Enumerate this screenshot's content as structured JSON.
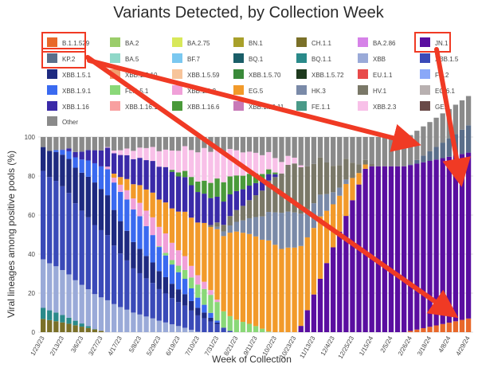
{
  "chart_data": {
    "type": "bar",
    "stacked": true,
    "title": "Variants Detected, by Collection Week",
    "xlabel": "Week of Collection",
    "ylabel": "Viral lineages among positive pools (%)",
    "ylim": [
      0,
      100
    ],
    "y_ticks": [
      0,
      20,
      40,
      60,
      80,
      100
    ],
    "grid": true,
    "legend_position": "top",
    "x_tick_labels": [
      "1/23/23",
      "2/13/23",
      "3/6/23",
      "3/27/23",
      "4/17/23",
      "5/8/23",
      "5/29/23",
      "6/19/23",
      "7/10/23",
      "7/31/23",
      "8/21/23",
      "9/11/23",
      "10/2/23",
      "10/23/23",
      "11/13/23",
      "12/4/23",
      "12/25/23",
      "1/15/24",
      "2/5/24",
      "2/26/24",
      "3/18/24",
      "4/8/24",
      "4/29/24"
    ],
    "weeks_count": 67,
    "legend": [
      {
        "name": "B.1.1.529",
        "color": "#e8682a"
      },
      {
        "name": "BA.2",
        "color": "#9acd6a"
      },
      {
        "name": "BA.2.75",
        "color": "#d8e85a"
      },
      {
        "name": "BN.1",
        "color": "#a8a02a"
      },
      {
        "name": "CH.1.1",
        "color": "#7a7028"
      },
      {
        "name": "BA.2.86",
        "color": "#d682e8"
      },
      {
        "name": "JN.1",
        "color": "#5a0ea0"
      },
      {
        "name": "KP.2",
        "color": "#5a6e8a"
      },
      {
        "name": "BA.5",
        "color": "#8fd8c8"
      },
      {
        "name": "BF.7",
        "color": "#7ac8f0"
      },
      {
        "name": "BQ.1",
        "color": "#1a5e68"
      },
      {
        "name": "BQ.1.1",
        "color": "#2a8a8a"
      },
      {
        "name": "XBB",
        "color": "#9aaad8"
      },
      {
        "name": "XBB.1.5",
        "color": "#3a4ab8"
      },
      {
        "name": "XBB.1.5.1",
        "color": "#1e2a80"
      },
      {
        "name": "XBB.1.5.10",
        "color": "#f0a070"
      },
      {
        "name": "XBB.1.5.59",
        "color": "#f7c49a"
      },
      {
        "name": "XBB.1.5.70",
        "color": "#3a8a3a"
      },
      {
        "name": "XBB.1.5.72",
        "color": "#1e3a1e"
      },
      {
        "name": "EU.1.1",
        "color": "#e84a4a"
      },
      {
        "name": "FD.2",
        "color": "#8aa8f8"
      },
      {
        "name": "XBB.1.9.1",
        "color": "#3a6af0"
      },
      {
        "name": "FL.1.5.1",
        "color": "#8ad878"
      },
      {
        "name": "XBB.1.9.2",
        "color": "#f0a0d8"
      },
      {
        "name": "EG.5",
        "color": "#f29a2a"
      },
      {
        "name": "HK.3",
        "color": "#7a8aa8"
      },
      {
        "name": "HV.1",
        "color": "#7a7868"
      },
      {
        "name": "EG.6.1",
        "color": "#b8b0b0"
      },
      {
        "name": "XBB.1.16",
        "color": "#3a2aa8"
      },
      {
        "name": "XBB.1.16.1",
        "color": "#f8a0a0"
      },
      {
        "name": "XBB.1.16.6",
        "color": "#4a9a3a"
      },
      {
        "name": "XBB.1.16.11",
        "color": "#c87ab8"
      },
      {
        "name": "FE.1.1",
        "color": "#4a9a88"
      },
      {
        "name": "XBB.2.3",
        "color": "#f8c0e8"
      },
      {
        "name": "GE.1",
        "color": "#6a4a48"
      },
      {
        "name": "Other",
        "color": "#8a8a8a"
      }
    ],
    "annotations": {
      "boxes": [
        "B.1.1.529",
        "KP.2",
        "JN.1"
      ],
      "arrow_color": "#f03a24"
    }
  }
}
